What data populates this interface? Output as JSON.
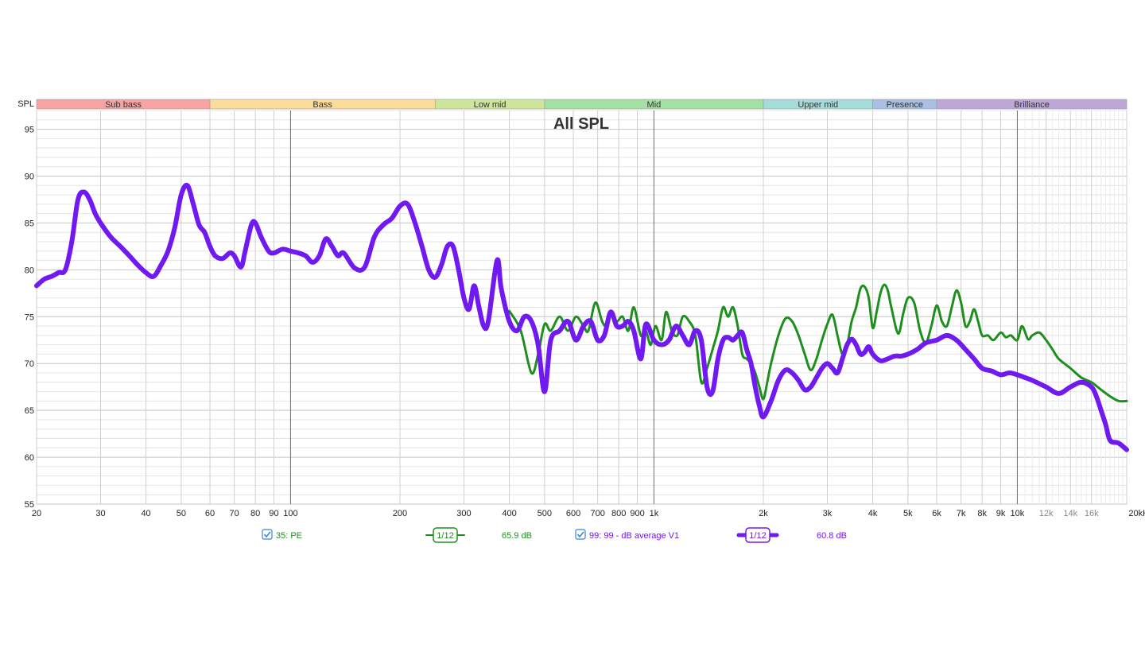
{
  "chart_data": {
    "type": "line",
    "title": "All SPL",
    "ylabel": "SPL",
    "xlabel": "",
    "x_scale": "log",
    "xlim": [
      20,
      20000
    ],
    "ylim": [
      55,
      97
    ],
    "grid": true,
    "x_ticks": [
      {
        "value": 20,
        "label": "20"
      },
      {
        "value": 30,
        "label": "30"
      },
      {
        "value": 40,
        "label": "40"
      },
      {
        "value": 50,
        "label": "50"
      },
      {
        "value": 60,
        "label": "60"
      },
      {
        "value": 70,
        "label": "70"
      },
      {
        "value": 80,
        "label": "80"
      },
      {
        "value": 90,
        "label": "90"
      },
      {
        "value": 100,
        "label": "100"
      },
      {
        "value": 200,
        "label": "200"
      },
      {
        "value": 300,
        "label": "300"
      },
      {
        "value": 400,
        "label": "400"
      },
      {
        "value": 500,
        "label": "500"
      },
      {
        "value": 600,
        "label": "600"
      },
      {
        "value": 700,
        "label": "700"
      },
      {
        "value": 800,
        "label": "800"
      },
      {
        "value": 900,
        "label": "900"
      },
      {
        "value": 1000,
        "label": "1k"
      },
      {
        "value": 2000,
        "label": "2k"
      },
      {
        "value": 3000,
        "label": "3k"
      },
      {
        "value": 4000,
        "label": "4k"
      },
      {
        "value": 5000,
        "label": "5k"
      },
      {
        "value": 6000,
        "label": "6k"
      },
      {
        "value": 7000,
        "label": "7k"
      },
      {
        "value": 8000,
        "label": "8k"
      },
      {
        "value": 9000,
        "label": "9k"
      },
      {
        "value": 10000,
        "label": "10k"
      },
      {
        "value": 12000,
        "label": "12k"
      },
      {
        "value": 14000,
        "label": "14k"
      },
      {
        "value": 16000,
        "label": "16k"
      },
      {
        "value": 20000,
        "label": "20kHz"
      }
    ],
    "dim_tick_labels": [
      "12k",
      "14k",
      "16k"
    ],
    "y_ticks": [
      55,
      60,
      65,
      70,
      75,
      80,
      85,
      90,
      95
    ],
    "bands": [
      {
        "name": "Sub bass",
        "from": 20,
        "to": 60,
        "color": "#f7a3a3"
      },
      {
        "name": "Bass",
        "from": 60,
        "to": 250,
        "color": "#fbdc9b"
      },
      {
        "name": "Low mid",
        "from": 250,
        "to": 500,
        "color": "#cde69b"
      },
      {
        "name": "Mid",
        "from": 500,
        "to": 2000,
        "color": "#a4dfa4"
      },
      {
        "name": "Upper mid",
        "from": 2000,
        "to": 4000,
        "color": "#a3dcd8"
      },
      {
        "name": "Presence",
        "from": 4000,
        "to": 6000,
        "color": "#a9bfe3"
      },
      {
        "name": "Brilliance",
        "from": 6000,
        "to": 20000,
        "color": "#bca7d6"
      }
    ],
    "series": [
      {
        "name": "35: PE",
        "color": "#1e8f1e",
        "smoothing": "1/12",
        "value_label": "65.9 dB",
        "x": [
          400,
          430,
          460,
          480,
          500,
          520,
          550,
          580,
          610,
          640,
          660,
          690,
          720,
          740,
          760,
          790,
          820,
          850,
          880,
          920,
          950,
          980,
          1010,
          1050,
          1080,
          1120,
          1160,
          1200,
          1250,
          1300,
          1350,
          1400,
          1450,
          1500,
          1550,
          1600,
          1650,
          1700,
          1750,
          1800,
          1850,
          1900,
          1950,
          2000,
          2050,
          2100,
          2200,
          2300,
          2400,
          2500,
          2600,
          2700,
          2800,
          2900,
          3000,
          3100,
          3200,
          3300,
          3400,
          3500,
          3600,
          3700,
          3800,
          3900,
          4000,
          4100,
          4200,
          4300,
          4400,
          4500,
          4700,
          4850,
          5000,
          5200,
          5400,
          5600,
          5800,
          6000,
          6200,
          6400,
          6600,
          6800,
          7000,
          7200,
          7400,
          7600,
          7800,
          8000,
          8300,
          8600,
          9000,
          9300,
          9600,
          10000,
          10300,
          10700,
          11000,
          11500,
          12000,
          12500,
          13000,
          14000,
          15000,
          16000,
          17000,
          18000,
          19000,
          20000
        ],
        "y": [
          75.6,
          73.5,
          69,
          71,
          74.2,
          73.5,
          75,
          73.5,
          75,
          74,
          73.5,
          76.5,
          74.5,
          74,
          75.2,
          74.5,
          75,
          73.5,
          76,
          73,
          73.5,
          72,
          74,
          72.5,
          75.5,
          73.5,
          73,
          75,
          74.5,
          73,
          68,
          69.5,
          71.5,
          73.5,
          76,
          75,
          76,
          74,
          71,
          70.5,
          70,
          69,
          67.5,
          66.2,
          68,
          70,
          73,
          74.8,
          74.5,
          73,
          71,
          69.3,
          70.5,
          72.5,
          74.2,
          75.2,
          73,
          71,
          72,
          74.5,
          76,
          78,
          78.2,
          77,
          73.8,
          75.5,
          77.5,
          78.4,
          77.8,
          76,
          73.2,
          75.3,
          77,
          76.5,
          73.5,
          72.2,
          74,
          76.2,
          74.5,
          74,
          76,
          77.8,
          76.5,
          74,
          74.5,
          75.8,
          74.5,
          73,
          73,
          72.5,
          73.3,
          72.8,
          73,
          72.5,
          74,
          72.6,
          73,
          73.3,
          72.5,
          71.5,
          70.5,
          69.5,
          68.5,
          68,
          67.2,
          66.5,
          66,
          66
        ]
      },
      {
        "name": "99: 99 - dB average V1",
        "color": "#7019f0",
        "smoothing": "1/12",
        "value_label": "60.8 dB",
        "x": [
          20,
          21,
          22,
          23,
          24,
          25,
          26,
          27,
          28,
          29,
          30,
          32,
          34,
          36,
          38,
          40,
          42,
          44,
          46,
          48,
          50,
          52,
          54,
          56,
          58,
          60,
          62,
          65,
          68,
          70,
          73,
          75,
          78,
          80,
          83,
          87,
          90,
          95,
          100,
          105,
          110,
          115,
          120,
          125,
          130,
          135,
          140,
          150,
          160,
          170,
          180,
          190,
          200,
          210,
          220,
          230,
          240,
          250,
          260,
          270,
          280,
          290,
          300,
          310,
          320,
          330,
          340,
          350,
          370,
          380,
          400,
          420,
          440,
          460,
          480,
          500,
          520,
          550,
          580,
          610,
          640,
          670,
          700,
          730,
          760,
          790,
          820,
          850,
          880,
          920,
          950,
          1000,
          1050,
          1100,
          1150,
          1200,
          1250,
          1300,
          1350,
          1400,
          1450,
          1500,
          1550,
          1600,
          1650,
          1700,
          1750,
          1800,
          1850,
          1900,
          1950,
          2000,
          2100,
          2200,
          2300,
          2400,
          2500,
          2600,
          2700,
          2800,
          2900,
          3000,
          3100,
          3200,
          3300,
          3400,
          3500,
          3600,
          3700,
          3800,
          3900,
          4000,
          4200,
          4400,
          4600,
          4800,
          5000,
          5300,
          5600,
          6000,
          6400,
          6800,
          7200,
          7600,
          8000,
          8500,
          9000,
          9500,
          10000,
          10500,
          11000,
          12000,
          13000,
          14000,
          15000,
          16000,
          16500,
          17000,
          17500,
          18000,
          19000,
          20000
        ],
        "y": [
          78.3,
          79,
          79.3,
          79.7,
          80,
          83,
          87.5,
          88.3,
          87.5,
          86,
          85,
          83.5,
          82.5,
          81.5,
          80.5,
          79.7,
          79.3,
          80.5,
          82,
          84.5,
          88,
          89,
          87,
          84.8,
          84,
          82.5,
          81.5,
          81.2,
          81.8,
          81.5,
          80.3,
          82,
          84.8,
          85,
          83.5,
          82,
          81.8,
          82.2,
          82,
          81.8,
          81.5,
          80.8,
          81.5,
          83.3,
          82.5,
          81.5,
          81.8,
          80.2,
          80.3,
          83.5,
          84.8,
          85.5,
          86.8,
          87,
          85,
          82.5,
          80,
          79.2,
          80.5,
          82.5,
          82.5,
          80,
          77,
          75.8,
          78.3,
          76,
          74,
          74.5,
          81,
          78,
          74.5,
          73.5,
          75,
          74.5,
          72,
          67,
          72.5,
          73.5,
          74.5,
          72.5,
          74,
          74.5,
          72.5,
          73,
          75.5,
          74,
          74,
          74.5,
          73.5,
          70.5,
          74.2,
          72.5,
          72,
          72.5,
          74,
          73,
          72,
          73.5,
          72.5,
          67.5,
          67,
          70.5,
          72.5,
          72.8,
          72.5,
          73,
          73.3,
          71.5,
          70,
          67.5,
          65.5,
          64.3,
          66,
          68.2,
          69.3,
          69,
          68.2,
          67.2,
          67.5,
          68.5,
          69.5,
          70,
          69.5,
          69,
          70.5,
          72,
          72.6,
          72,
          71,
          71.2,
          71.8,
          71,
          70.3,
          70.5,
          70.8,
          70.8,
          71,
          71.5,
          72.2,
          72.5,
          73,
          72.5,
          71.5,
          70.5,
          69.5,
          69.2,
          68.8,
          69,
          68.8,
          68.5,
          68.2,
          67.5,
          66.8,
          67.5,
          68,
          67.5,
          66.5,
          65,
          63.5,
          61.8,
          61.5,
          60.8
        ]
      }
    ]
  }
}
